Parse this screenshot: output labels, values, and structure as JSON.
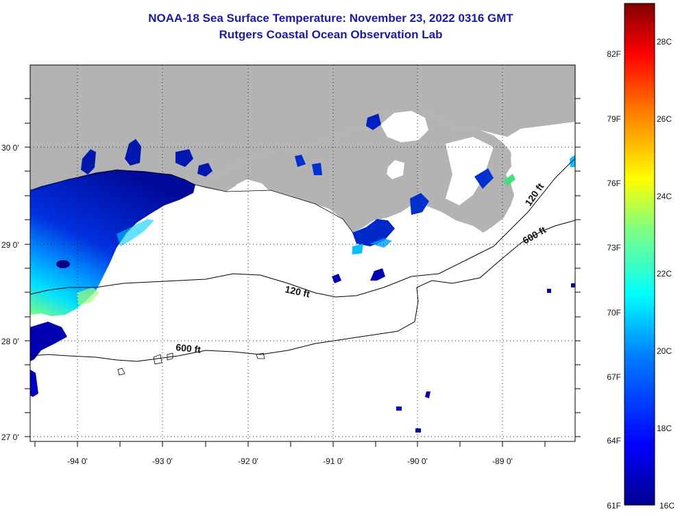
{
  "title": "NOAA-18 Sea Surface Temperature:  November 23, 2022 0316 GMT",
  "subtitle": "Rutgers Coastal Ocean Observation Lab",
  "map": {
    "lat_labels": [
      "30 0'",
      "29 0'",
      "28 0'",
      "27 0'"
    ],
    "lon_labels": [
      "-94 0'",
      "-93 0'",
      "-92 0'",
      "-91 0'",
      "-90 0'",
      "-89 0'"
    ],
    "lat_range": [
      26.95,
      30.85
    ],
    "lon_range": [
      -94.55,
      -88.2
    ],
    "contours": [
      {
        "label": "120 ft"
      },
      {
        "label": "600 ft"
      },
      {
        "label": "120 ft"
      },
      {
        "label": "600 ft"
      }
    ],
    "colors": {
      "land": "#b3b3b3",
      "no_data": "#ffffff",
      "dotted_grid": "#222222"
    }
  },
  "colorbar": {
    "fahrenheit_labels": [
      "82F",
      "79F",
      "76F",
      "73F",
      "70F",
      "67F",
      "64F",
      "61F"
    ],
    "celsius_labels": [
      "28C",
      "26C",
      "24C",
      "22C",
      "20C",
      "18C",
      "16C"
    ],
    "min_c": 16,
    "max_c": 29
  }
}
